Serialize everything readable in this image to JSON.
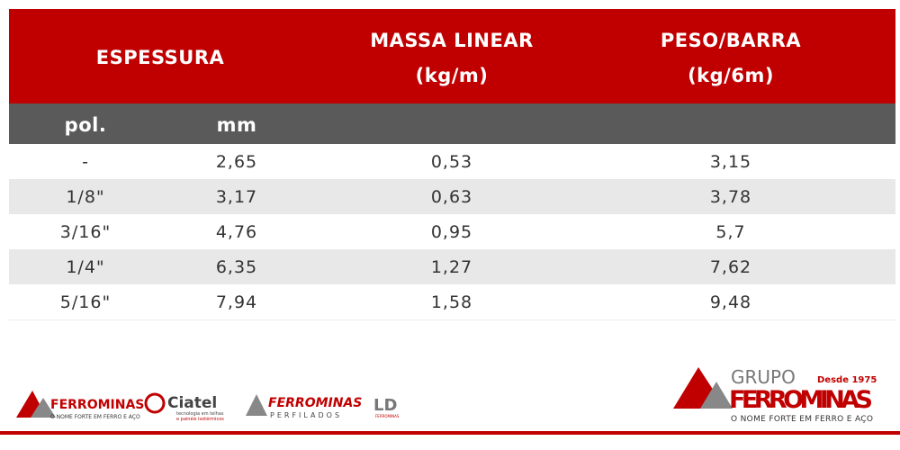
{
  "header": {
    "espessura": "ESPESSURA",
    "massa_linear": [
      "MASSA LINEAR",
      "(kg/m)"
    ],
    "peso_barra": [
      "PESO/BARRA",
      "(kg/6m)"
    ]
  },
  "subheader": [
    "pol.",
    "mm"
  ],
  "table": {
    "rows": [
      [
        "-",
        "2,65",
        "0,53",
        "3,15"
      ],
      [
        "1/8\"",
        "3,17",
        "0,63",
        "3,78"
      ],
      [
        "3/16\"",
        "4,76",
        "0,95",
        "5,7"
      ],
      [
        "1/4\"",
        "6,35",
        "1,27",
        "7,62"
      ],
      [
        "5/16\"",
        "7,94",
        "1,58",
        "9,48"
      ]
    ]
  },
  "logos": {
    "ferrominas": {
      "name": "FERROMINAS",
      "slogan": "O NOME FORTE EM FERRO E AÇO"
    },
    "ciatel": {
      "name": "Ciatel",
      "line1": "tecnologia em telhas",
      "line2": "e painéis isotérmicos"
    },
    "perfilados": {
      "name": "FERROMINAS",
      "sub": "PERFILADOS"
    },
    "ld": {
      "name": "LD",
      "sub": "FERROMINAS"
    },
    "grupo": {
      "top": "GRUPO",
      "since": "Desde 1975",
      "name": "FERROMINAS",
      "slogan": "O NOME FORTE EM FERRO E AÇO"
    }
  }
}
